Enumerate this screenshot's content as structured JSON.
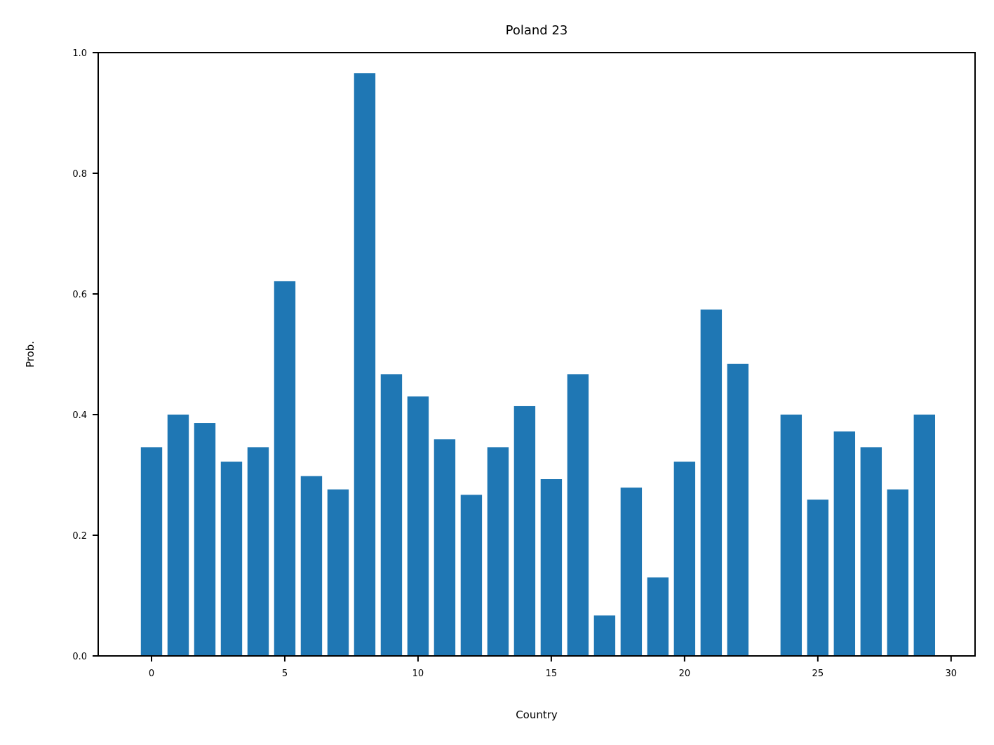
{
  "chart_data": {
    "type": "bar",
    "title": "Poland 23",
    "xlabel": "Country",
    "ylabel": "Prob.",
    "x": [
      0,
      1,
      2,
      3,
      4,
      5,
      6,
      7,
      8,
      9,
      10,
      11,
      12,
      13,
      14,
      15,
      16,
      17,
      18,
      19,
      20,
      21,
      22,
      23,
      24,
      25,
      26,
      27,
      28,
      29
    ],
    "values": [
      0.346,
      0.4,
      0.386,
      0.322,
      0.346,
      0.621,
      0.298,
      0.276,
      0.966,
      0.467,
      0.43,
      0.359,
      0.267,
      0.346,
      0.414,
      0.293,
      0.467,
      0.067,
      0.279,
      0.13,
      0.322,
      0.574,
      0.484,
      0.0,
      0.4,
      0.259,
      0.372,
      0.346,
      0.276,
      0.4
    ],
    "xlim": [
      -2,
      30.9
    ],
    "ylim": [
      0,
      1.0
    ],
    "xticks": [
      0,
      5,
      10,
      15,
      20,
      25,
      30
    ],
    "yticks": [
      0.0,
      0.2,
      0.4,
      0.6,
      0.8,
      1.0
    ],
    "grid": false,
    "bar_color": "#1f77b4"
  }
}
